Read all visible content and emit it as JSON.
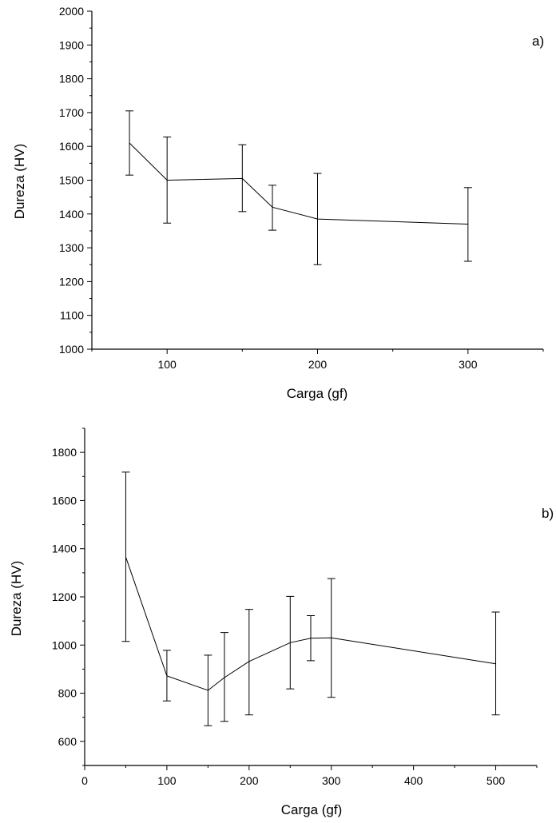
{
  "chart_data": [
    {
      "type": "line",
      "panel_label": "a)",
      "xlabel": "Carga (gf)",
      "ylabel": "Dureza (HV)",
      "xlim": [
        50,
        350
      ],
      "ylim": [
        1000,
        2000
      ],
      "xticks": [
        100,
        200,
        300
      ],
      "yticks": [
        1000,
        1100,
        1200,
        1300,
        1400,
        1500,
        1600,
        1700,
        1800,
        1900,
        2000
      ],
      "grid": false,
      "x": [
        75,
        100,
        150,
        170,
        200,
        300
      ],
      "y": [
        1610,
        1500,
        1505,
        1420,
        1385,
        1370
      ],
      "yerr_low": [
        1515,
        1373,
        1407,
        1352,
        1250,
        1260
      ],
      "yerr_high": [
        1705,
        1628,
        1605,
        1485,
        1520,
        1478
      ]
    },
    {
      "type": "line",
      "panel_label": "b)",
      "xlabel": "Carga (gf)",
      "ylabel": "Dureza (HV)",
      "xlim": [
        0,
        550
      ],
      "ylim": [
        500,
        1900
      ],
      "xticks": [
        0,
        100,
        200,
        300,
        400,
        500
      ],
      "yticks": [
        600,
        800,
        1000,
        1200,
        1400,
        1600,
        1800
      ],
      "grid": false,
      "x": [
        50,
        100,
        150,
        170,
        200,
        250,
        275,
        300,
        500
      ],
      "y": [
        1365,
        872,
        812,
        865,
        932,
        1010,
        1028,
        1030,
        922
      ],
      "yerr_low": [
        1015,
        768,
        665,
        683,
        710,
        818,
        935,
        783,
        710
      ],
      "yerr_high": [
        1718,
        978,
        958,
        1052,
        1148,
        1202,
        1122,
        1276,
        1137
      ]
    }
  ]
}
